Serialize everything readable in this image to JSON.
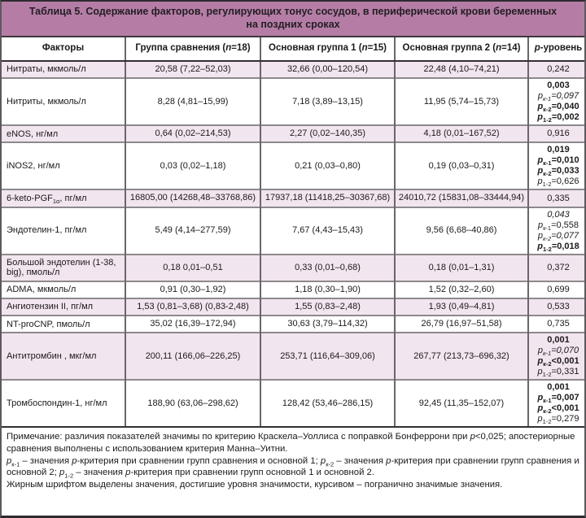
{
  "title": "Таблица 5. Содержание факторов, регулирующих тонус сосудов, в периферической крови беременных на поздних сроках",
  "colors": {
    "title_bar": "#b57da6",
    "row_shade": "#f1e5ef",
    "grid_horizontal": "#8d898d",
    "grid_vertical": "#6b666b",
    "heavy_rule": "#332f33"
  },
  "table": {
    "headers": [
      [
        {
          "t": "Факторы"
        }
      ],
      [
        {
          "t": "Группа сравнения ("
        },
        {
          "t": "n",
          "i": true
        },
        {
          "t": "=18)"
        }
      ],
      [
        {
          "t": "Основная группа 1 ("
        },
        {
          "t": "n",
          "i": true
        },
        {
          "t": "=15)"
        }
      ],
      [
        {
          "t": "Основная группа 2 ("
        },
        {
          "t": "n",
          "i": true
        },
        {
          "t": "=14)"
        }
      ],
      [
        {
          "t": "p",
          "i": true
        },
        {
          "t": "-уровень"
        }
      ]
    ],
    "rows": [
      {
        "shaded": true,
        "factor": [
          {
            "t": "Нитраты, мкмоль/л"
          }
        ],
        "values": [
          "20,58 (7,22–52,03)",
          "32,66 (0,00–120,54)",
          "22,48 (4,10–74,21)"
        ],
        "p": [
          {
            "val": "0,242",
            "style": ""
          }
        ]
      },
      {
        "shaded": false,
        "factor": [
          {
            "t": "Нитриты, мкмоль/л"
          }
        ],
        "values": [
          "8,28 (4,81–15,99)",
          "7,18 (3,89–13,15)",
          "11,95 (5,74–15,73)"
        ],
        "p": [
          {
            "val": "0,003",
            "style": "bold"
          },
          {
            "sub": "к-1",
            "rel": "=",
            "val": "0,097",
            "style": "italic"
          },
          {
            "sub": "к-2",
            "rel": "=",
            "val": "0,040",
            "style": "bold"
          },
          {
            "sub": "1-2",
            "rel": "=",
            "val": "0,002",
            "style": "bold"
          }
        ]
      },
      {
        "shaded": true,
        "factor": [
          {
            "t": "eNOS, нг/мл"
          }
        ],
        "values": [
          "0,64 (0,02–214,53)",
          "2,27 (0,02–140,35)",
          "4,18 (0,01–167,52)"
        ],
        "p": [
          {
            "val": "0,916",
            "style": ""
          }
        ]
      },
      {
        "shaded": false,
        "factor": [
          {
            "t": "iNOS2, нг/мл"
          }
        ],
        "values": [
          "0,03 (0,02–1,18)",
          "0,21 (0,03–0,80)",
          "0,19 (0,03–0,31)"
        ],
        "p": [
          {
            "val": "0,019",
            "style": "bold"
          },
          {
            "sub": "к-1",
            "rel": "=",
            "val": "0,010",
            "style": "bold"
          },
          {
            "sub": "к-2",
            "rel": "=",
            "val": "0,033",
            "style": "bold"
          },
          {
            "sub": "1-2",
            "rel": "=",
            "val": "0,626",
            "style": ""
          }
        ]
      },
      {
        "shaded": true,
        "factor": [
          {
            "t": "6-keto-PGF"
          },
          {
            "t": "1α",
            "sub": true
          },
          {
            "t": ", пг/мл"
          }
        ],
        "values": [
          "16805,00 (14268,48–33768,86)",
          "17937,18 (11418,25–30367,68)",
          "24010,72 (15831,08–33444,94)"
        ],
        "p": [
          {
            "val": "0,335",
            "style": ""
          }
        ]
      },
      {
        "shaded": false,
        "factor": [
          {
            "t": "Эндотелин-1, пг/мл"
          }
        ],
        "values": [
          "5,49 (4,14–277,59)",
          "7,67 (4,43–15,43)",
          "9,56 (6,68–40,86)"
        ],
        "p": [
          {
            "val": "0,043",
            "style": "italic"
          },
          {
            "sub": "к-1",
            "rel": "=",
            "val": "0,558",
            "style": ""
          },
          {
            "sub": "к-2",
            "rel": "=",
            "val": "0,077",
            "style": "italic"
          },
          {
            "sub": "1-2",
            "rel": "=",
            "val": "0,018",
            "style": "bold"
          }
        ]
      },
      {
        "shaded": true,
        "factor": [
          {
            "t": "Большой эндотелин (1-38, big), пмоль/л"
          }
        ],
        "values": [
          "0,18 0,01–0,51",
          "0,33 (0,01–0,68)",
          "0,18 (0,01–1,31)"
        ],
        "p": [
          {
            "val": "0,372",
            "style": ""
          }
        ]
      },
      {
        "shaded": false,
        "factor": [
          {
            "t": "ADMA, мкмоль/л"
          }
        ],
        "values": [
          "0,91 (0,30–1,92)",
          "1,18 (0,30–1,90)",
          "1,52 (0,32–2,60)"
        ],
        "p": [
          {
            "val": "0,699",
            "style": ""
          }
        ]
      },
      {
        "shaded": true,
        "factor": [
          {
            "t": "Ангиотензин II, пг/мл"
          }
        ],
        "values": [
          "1,53 (0,81–3,68) (0,83-2,48)",
          "1,55 (0,83–2,48)",
          "1,93 (0,49–4,81)"
        ],
        "p": [
          {
            "val": "0,533",
            "style": ""
          }
        ]
      },
      {
        "shaded": false,
        "factor": [
          {
            "t": "NT-proCNP, пмоль/л"
          }
        ],
        "values": [
          "35,02 (16,39–172,94)",
          "30,63 (3,79–114,32)",
          "26,79 (16,97–51,58)"
        ],
        "p": [
          {
            "val": "0,735",
            "style": ""
          }
        ]
      },
      {
        "shaded": true,
        "factor": [
          {
            "t": "Антитромбин , мкг/мл"
          }
        ],
        "values": [
          "200,11 (166,06–226,25)",
          "253,71 (116,64–309,06)",
          "267,77 (213,73–696,32)"
        ],
        "p": [
          {
            "val": "0,001",
            "style": "bold"
          },
          {
            "sub": "к-1",
            "rel": "=",
            "val": "0,070",
            "style": "italic"
          },
          {
            "sub": "к-2",
            "rel": "<",
            "val": "0,001",
            "style": "bold"
          },
          {
            "sub": "1-2",
            "rel": "=",
            "val": "0,331",
            "style": ""
          }
        ]
      },
      {
        "shaded": false,
        "factor": [
          {
            "t": "Тромбоспондин-1, нг/мл"
          }
        ],
        "values": [
          "188,90 (63,06–298,62)",
          "128,42 (53,46–286,15)",
          "92,45 (11,35–152,07)"
        ],
        "p": [
          {
            "val": "0,001",
            "style": "bold"
          },
          {
            "sub": "к-1",
            "rel": "=",
            "val": "0,007",
            "style": "bold"
          },
          {
            "sub": "к-2",
            "rel": "<",
            "val": "0,001",
            "style": "bold"
          },
          {
            "sub": "1-2",
            "rel": "=",
            "val": "0,279",
            "style": ""
          }
        ]
      }
    ]
  },
  "notes": [
    [
      {
        "t": "Примечание: различия показателей значимы по критерию Краскела–Уоллиса с поправкой Бонферрони при "
      },
      {
        "t": "p",
        "i": true
      },
      {
        "t": "<0,025; апостериорные сравнения выполнены с использованием критерия Манна–Уитни."
      }
    ],
    [
      {
        "t": "p",
        "i": true
      },
      {
        "t": "к-1",
        "sub": true
      },
      {
        "t": " – значения "
      },
      {
        "t": "p",
        "i": true
      },
      {
        "t": "-критерия при сравнении групп сравнения и основной 1; "
      },
      {
        "t": "p",
        "i": true
      },
      {
        "t": "к-2",
        "sub": true
      },
      {
        "t": " – значения "
      },
      {
        "t": "p",
        "i": true
      },
      {
        "t": "-критерия при сравнении групп сравнения и основной 2; "
      },
      {
        "t": "p",
        "i": true
      },
      {
        "t": "1-2",
        "sub": true
      },
      {
        "t": " – значения "
      },
      {
        "t": "p",
        "i": true
      },
      {
        "t": "-критерия при сравнении групп основной 1 и основной 2."
      }
    ],
    [
      {
        "t": "Жирным шрифтом выделены значения, достигшие уровня значимости, курсивом – погранично значимые значения."
      }
    ]
  ]
}
